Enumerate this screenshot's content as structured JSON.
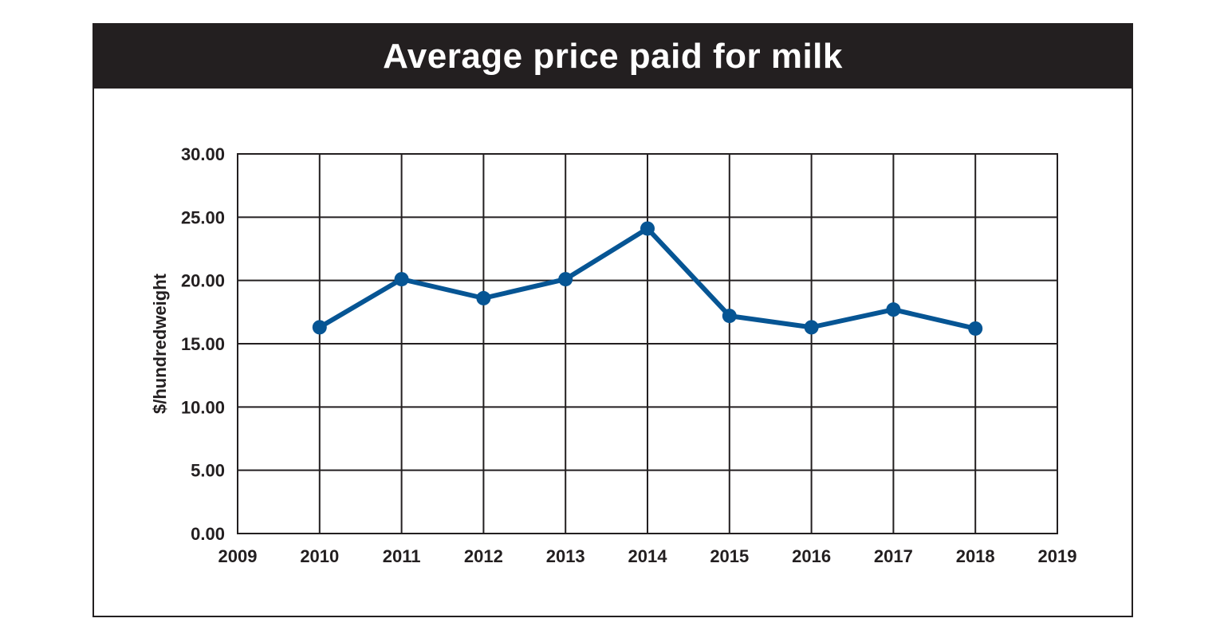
{
  "chart_data": {
    "type": "line",
    "title": "Average price paid for milk",
    "xlabel": "",
    "ylabel": "$/hundredweight",
    "x": [
      2010,
      2011,
      2012,
      2013,
      2014,
      2015,
      2016,
      2017,
      2018
    ],
    "series": [
      {
        "name": "Average price paid for milk",
        "values": [
          16.3,
          20.1,
          18.6,
          20.1,
          24.1,
          17.2,
          16.3,
          17.7,
          16.2
        ]
      }
    ],
    "xlim": [
      2009,
      2019
    ],
    "ylim": [
      0,
      30
    ],
    "xticks": [
      "2009",
      "2010",
      "2011",
      "2012",
      "2013",
      "2014",
      "2015",
      "2016",
      "2017",
      "2018",
      "2019"
    ],
    "yticks": [
      "0.00",
      "5.00",
      "10.00",
      "15.00",
      "20.00",
      "25.00",
      "30.00"
    ],
    "grid": true,
    "colors": {
      "line": "#065594",
      "grid": "#231f20",
      "title_bg": "#231f20"
    }
  }
}
